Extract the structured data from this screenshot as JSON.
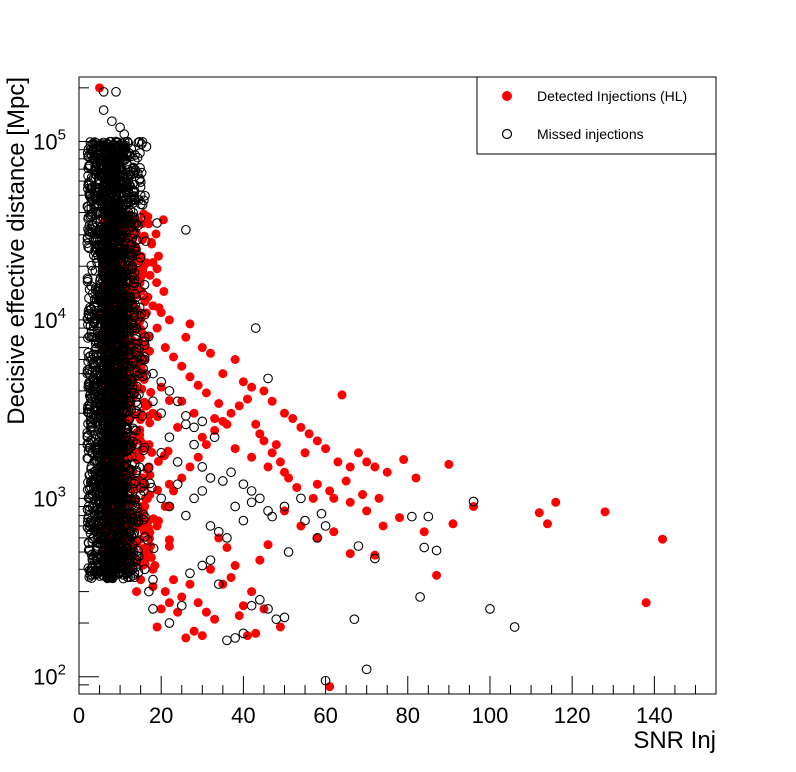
{
  "chart_data": {
    "type": "scatter",
    "title": "",
    "xlabel": "SNR Inj",
    "ylabel": "Decisive effective distance [Mpc]",
    "xlim": [
      0,
      155
    ],
    "ylim": [
      80,
      230000
    ],
    "y_scale": "log",
    "grid": false,
    "legend_position": "top-right",
    "x_ticks": [
      0,
      20,
      40,
      60,
      80,
      100,
      120,
      140
    ],
    "x_tick_labels": [
      "0",
      "20",
      "40",
      "60",
      "80",
      "100",
      "120",
      "140"
    ],
    "y_ticks": [
      100,
      1000,
      10000,
      100000
    ],
    "y_tick_labels": [
      {
        "base": "10",
        "exp": "2"
      },
      {
        "base": "10",
        "exp": "3"
      },
      {
        "base": "10",
        "exp": "4"
      },
      {
        "base": "10",
        "exp": "5"
      }
    ],
    "series": [
      {
        "name": "Detected Injections (HL)",
        "marker": "filled-circle",
        "color": "#ff0000",
        "points": [
          [
            5,
            200000
          ],
          [
            8,
            55000
          ],
          [
            10,
            40000
          ],
          [
            12,
            30000
          ],
          [
            14,
            25000
          ],
          [
            18,
            21000
          ],
          [
            16,
            13000
          ],
          [
            18,
            12000
          ],
          [
            20,
            11000
          ],
          [
            22,
            10000
          ],
          [
            26,
            8000
          ],
          [
            27,
            9500
          ],
          [
            30,
            7000
          ],
          [
            32,
            6500
          ],
          [
            35,
            5000
          ],
          [
            38,
            6000
          ],
          [
            40,
            4500
          ],
          [
            42,
            4200
          ],
          [
            45,
            4000
          ],
          [
            47,
            3500
          ],
          [
            50,
            3000
          ],
          [
            52,
            2800
          ],
          [
            54,
            2500
          ],
          [
            56,
            2300
          ],
          [
            58,
            2100
          ],
          [
            60,
            1900
          ],
          [
            63,
            1600
          ],
          [
            64,
            3800
          ],
          [
            66,
            1500
          ],
          [
            68,
            1800
          ],
          [
            70,
            1600
          ],
          [
            72,
            1500
          ],
          [
            75,
            1400
          ],
          [
            79,
            1650
          ],
          [
            82,
            1300
          ],
          [
            90,
            1550
          ],
          [
            25,
            3500
          ],
          [
            28,
            3000
          ],
          [
            33,
            2800
          ],
          [
            36,
            2600
          ],
          [
            44,
            2300
          ],
          [
            48,
            2000
          ],
          [
            55,
            1800
          ],
          [
            24,
            2500
          ],
          [
            30,
            2200
          ],
          [
            38,
            1900
          ],
          [
            42,
            1700
          ],
          [
            46,
            1500
          ],
          [
            50,
            1400
          ],
          [
            58,
            1200
          ],
          [
            62,
            1000
          ],
          [
            66,
            950
          ],
          [
            70,
            850
          ],
          [
            74,
            700
          ],
          [
            78,
            780
          ],
          [
            84,
            650
          ],
          [
            91,
            720
          ],
          [
            96,
            900
          ],
          [
            112,
            830
          ],
          [
            114,
            720
          ],
          [
            116,
            950
          ],
          [
            128,
            840
          ],
          [
            142,
            590
          ],
          [
            138,
            260
          ],
          [
            87,
            370
          ],
          [
            72,
            480
          ],
          [
            66,
            490
          ],
          [
            62,
            650
          ],
          [
            58,
            600
          ],
          [
            54,
            700
          ],
          [
            50,
            850
          ],
          [
            46,
            550
          ],
          [
            44,
            450
          ],
          [
            42,
            300
          ],
          [
            40,
            250
          ],
          [
            38,
            420
          ],
          [
            36,
            530
          ],
          [
            34,
            600
          ],
          [
            32,
            400
          ],
          [
            30,
            170
          ],
          [
            28,
            180
          ],
          [
            26,
            165
          ],
          [
            24,
            230
          ],
          [
            22,
            260
          ],
          [
            20,
            240
          ],
          [
            19,
            190
          ],
          [
            18,
            320
          ],
          [
            21,
            300
          ],
          [
            23,
            350
          ],
          [
            25,
            280
          ],
          [
            27,
            330
          ],
          [
            29,
            260
          ],
          [
            31,
            230
          ],
          [
            33,
            210
          ],
          [
            35,
            330
          ],
          [
            37,
            360
          ],
          [
            39,
            220
          ],
          [
            41,
            170
          ],
          [
            43,
            175
          ],
          [
            45,
            240
          ],
          [
            49,
            190
          ],
          [
            61,
            88
          ],
          [
            17,
            500
          ],
          [
            19,
            700
          ],
          [
            21,
            900
          ],
          [
            23,
            1100
          ],
          [
            25,
            1300
          ],
          [
            27,
            1500
          ],
          [
            29,
            1700
          ],
          [
            31,
            2000
          ],
          [
            33,
            2400
          ],
          [
            35,
            2700
          ],
          [
            37,
            3000
          ],
          [
            39,
            3300
          ],
          [
            41,
            3600
          ],
          [
            43,
            2600
          ],
          [
            45,
            2100
          ],
          [
            47,
            1800
          ],
          [
            49,
            1600
          ],
          [
            51,
            1300
          ],
          [
            53,
            1150
          ],
          [
            57,
            1000
          ],
          [
            61,
            1100
          ],
          [
            65,
            1250
          ],
          [
            69,
            1050
          ],
          [
            73,
            1000
          ],
          [
            15,
            6000
          ],
          [
            17,
            8000
          ],
          [
            19,
            9000
          ],
          [
            21,
            7000
          ],
          [
            23,
            6200
          ],
          [
            25,
            5500
          ],
          [
            27,
            4800
          ],
          [
            29,
            4300
          ],
          [
            31,
            3900
          ],
          [
            34,
            3400
          ],
          [
            15,
            3000
          ],
          [
            16,
            2000
          ],
          [
            17,
            1500
          ],
          [
            16,
            900
          ],
          [
            15,
            700
          ],
          [
            16,
            450
          ],
          [
            18,
            400
          ],
          [
            15,
            350
          ],
          [
            14,
            300
          ]
        ]
      },
      {
        "name": "Missed injections",
        "marker": "open-circle",
        "color": "#000000",
        "points": [
          [
            6,
            190000
          ],
          [
            9,
            190000
          ],
          [
            6,
            150000
          ],
          [
            8,
            130000
          ],
          [
            10,
            120000
          ],
          [
            9,
            100000
          ],
          [
            11,
            110000
          ],
          [
            7,
            90000
          ],
          [
            5,
            80000
          ],
          [
            4,
            70000
          ],
          [
            8,
            70000
          ],
          [
            12,
            60000
          ],
          [
            15,
            50000
          ],
          [
            26,
            32000
          ],
          [
            43,
            9000
          ],
          [
            46,
            4700
          ],
          [
            9,
            45000
          ],
          [
            12,
            40000
          ],
          [
            10,
            35000
          ],
          [
            6,
            30000
          ],
          [
            14,
            28000
          ],
          [
            13,
            20000
          ],
          [
            11,
            15000
          ],
          [
            9,
            12000
          ],
          [
            4,
            10000
          ],
          [
            3,
            8000
          ],
          [
            2,
            5000
          ],
          [
            3,
            3000
          ],
          [
            2,
            2000
          ],
          [
            3,
            1500
          ],
          [
            4,
            1200
          ],
          [
            6,
            1000
          ],
          [
            8,
            800
          ],
          [
            10,
            600
          ],
          [
            12,
            500
          ],
          [
            14,
            450
          ],
          [
            16,
            400
          ],
          [
            18,
            350
          ],
          [
            17,
            300
          ],
          [
            18,
            240
          ],
          [
            22,
            200
          ],
          [
            25,
            250
          ],
          [
            27,
            380
          ],
          [
            30,
            420
          ],
          [
            32,
            450
          ],
          [
            34,
            330
          ],
          [
            36,
            160
          ],
          [
            38,
            165
          ],
          [
            40,
            175
          ],
          [
            42,
            250
          ],
          [
            44,
            270
          ],
          [
            46,
            240
          ],
          [
            48,
            210
          ],
          [
            50,
            215
          ],
          [
            47,
            790
          ],
          [
            51,
            500
          ],
          [
            55,
            750
          ],
          [
            58,
            600
          ],
          [
            60,
            700
          ],
          [
            60,
            95
          ],
          [
            67,
            210
          ],
          [
            68,
            540
          ],
          [
            70,
            110
          ],
          [
            72,
            460
          ],
          [
            81,
            790
          ],
          [
            83,
            280
          ],
          [
            84,
            530
          ],
          [
            85,
            790
          ],
          [
            87,
            510
          ],
          [
            96,
            960
          ],
          [
            100,
            240
          ],
          [
            106,
            190
          ],
          [
            20,
            1000
          ],
          [
            22,
            900
          ],
          [
            24,
            1200
          ],
          [
            26,
            800
          ],
          [
            28,
            1000
          ],
          [
            30,
            1100
          ],
          [
            32,
            700
          ],
          [
            34,
            650
          ],
          [
            36,
            600
          ],
          [
            38,
            900
          ],
          [
            40,
            750
          ],
          [
            42,
            950
          ],
          [
            44,
            1000
          ],
          [
            46,
            850
          ],
          [
            50,
            900
          ],
          [
            54,
            1000
          ],
          [
            59,
            820
          ],
          [
            20,
            1800
          ],
          [
            22,
            2200
          ],
          [
            24,
            1600
          ],
          [
            26,
            2600
          ],
          [
            28,
            2000
          ],
          [
            30,
            1500
          ],
          [
            32,
            1300
          ],
          [
            35,
            1250
          ],
          [
            37,
            1400
          ],
          [
            40,
            1200
          ],
          [
            42,
            1100
          ],
          [
            18,
            3500
          ],
          [
            20,
            3000
          ],
          [
            22,
            4000
          ],
          [
            24,
            3500
          ],
          [
            26,
            2900
          ],
          [
            28,
            2500
          ],
          [
            30,
            2700
          ],
          [
            33,
            2200
          ],
          [
            16,
            6000
          ],
          [
            18,
            5000
          ],
          [
            20,
            4500
          ],
          [
            14,
            9000
          ],
          [
            16,
            8000
          ],
          [
            13,
            12000
          ]
        ],
        "dense_core": {
          "x_mean": 8,
          "x_std": 3.2,
          "x_min": 2,
          "x_max": 19,
          "log10_y_range": [
            2.55,
            5.0
          ],
          "count": 2600
        }
      }
    ]
  }
}
